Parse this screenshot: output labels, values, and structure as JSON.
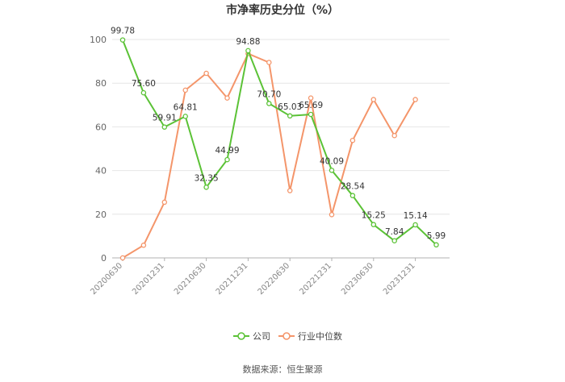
{
  "chart_data": {
    "type": "line",
    "title": "市净率历史分位（%）",
    "x": [
      "20200630",
      "20200930",
      "20201231",
      "20210331",
      "20210630",
      "20210930",
      "20211231",
      "20220331",
      "20220630",
      "20220930",
      "20221231",
      "20230331",
      "20230630",
      "20230930",
      "20231231",
      "20240331"
    ],
    "x_tick_labels": [
      "20200630",
      "20201231",
      "20210630",
      "20211231",
      "20220630",
      "20221231",
      "20230630",
      "20231231"
    ],
    "ylim": [
      0,
      100
    ],
    "y_ticks": [
      0,
      20,
      40,
      60,
      80,
      100
    ],
    "grid": true,
    "legend_position": "bottom-center",
    "series": [
      {
        "name": "公司",
        "color": "#5bc236",
        "values": [
          99.78,
          75.6,
          59.91,
          64.81,
          32.35,
          44.99,
          94.88,
          70.7,
          65.03,
          65.69,
          40.09,
          28.54,
          15.25,
          7.84,
          15.14,
          5.99
        ],
        "labels": [
          "99.78",
          "75.60",
          "59.91",
          "64.81",
          "32.35",
          "44.99",
          "94.88",
          "70.70",
          "65.03",
          "65.69",
          "40.09",
          "28.54",
          "15.25",
          "7.84",
          "15.14",
          "5.99"
        ]
      },
      {
        "name": "行业中位数",
        "color": "#f4956a",
        "values": [
          0,
          5.8,
          25.5,
          76.8,
          84.5,
          73.2,
          93.5,
          89.5,
          30.8,
          73.2,
          19.8,
          53.8,
          72.5,
          56.0,
          72.5,
          null
        ]
      }
    ]
  },
  "footer": {
    "source": "数据来源：恒生聚源"
  }
}
